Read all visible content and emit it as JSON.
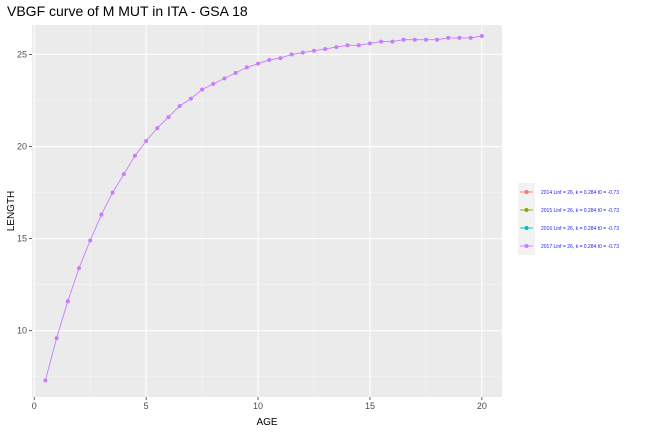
{
  "chart_data": {
    "type": "line",
    "title": "VBGF curve of M MUT in ITA - GSA 18",
    "xlabel": "AGE",
    "ylabel": "LENGTH",
    "xlim": [
      -0.1,
      20.9
    ],
    "ylim": [
      6.4,
      26.6
    ],
    "x_ticks": [
      0,
      5,
      10,
      15,
      20
    ],
    "y_ticks": [
      10,
      15,
      20,
      25
    ],
    "grid": true,
    "legend_position": "right",
    "series": [
      {
        "name": "2014 Linf = 26, k = 0.284 t0 = -0.73",
        "color": "#f8766d",
        "x": [],
        "y": []
      },
      {
        "name": "2015 Linf = 26, k = 0.284 t0 = -0.73",
        "color": "#7cae00",
        "x": [],
        "y": []
      },
      {
        "name": "2016 Linf = 26, k = 0.284 t0 = -0.73",
        "color": "#00bfc4",
        "x": [],
        "y": []
      },
      {
        "name": "2017 Linf = 26, k = 0.284 t0 = -0.73",
        "color": "#c77cff",
        "x": [
          0.5,
          1,
          1.5,
          2,
          2.5,
          3,
          3.5,
          4,
          4.5,
          5,
          5.5,
          6,
          6.5,
          7,
          7.5,
          8,
          8.5,
          9,
          9.5,
          10,
          10.5,
          11,
          11.5,
          12,
          12.5,
          13,
          13.5,
          14,
          14.5,
          15,
          15.5,
          16,
          16.5,
          17,
          17.5,
          18,
          18.5,
          19,
          19.5,
          20
        ],
        "y": [
          7.3,
          9.6,
          11.6,
          13.4,
          14.9,
          16.3,
          17.5,
          18.5,
          19.5,
          20.3,
          21.0,
          21.6,
          22.2,
          22.6,
          23.1,
          23.4,
          23.7,
          24.0,
          24.3,
          24.5,
          24.7,
          24.8,
          25.0,
          25.1,
          25.2,
          25.3,
          25.4,
          25.5,
          25.5,
          25.6,
          25.7,
          25.7,
          25.8,
          25.8,
          25.8,
          25.8,
          25.9,
          25.9,
          25.9,
          26.0
        ]
      }
    ]
  }
}
